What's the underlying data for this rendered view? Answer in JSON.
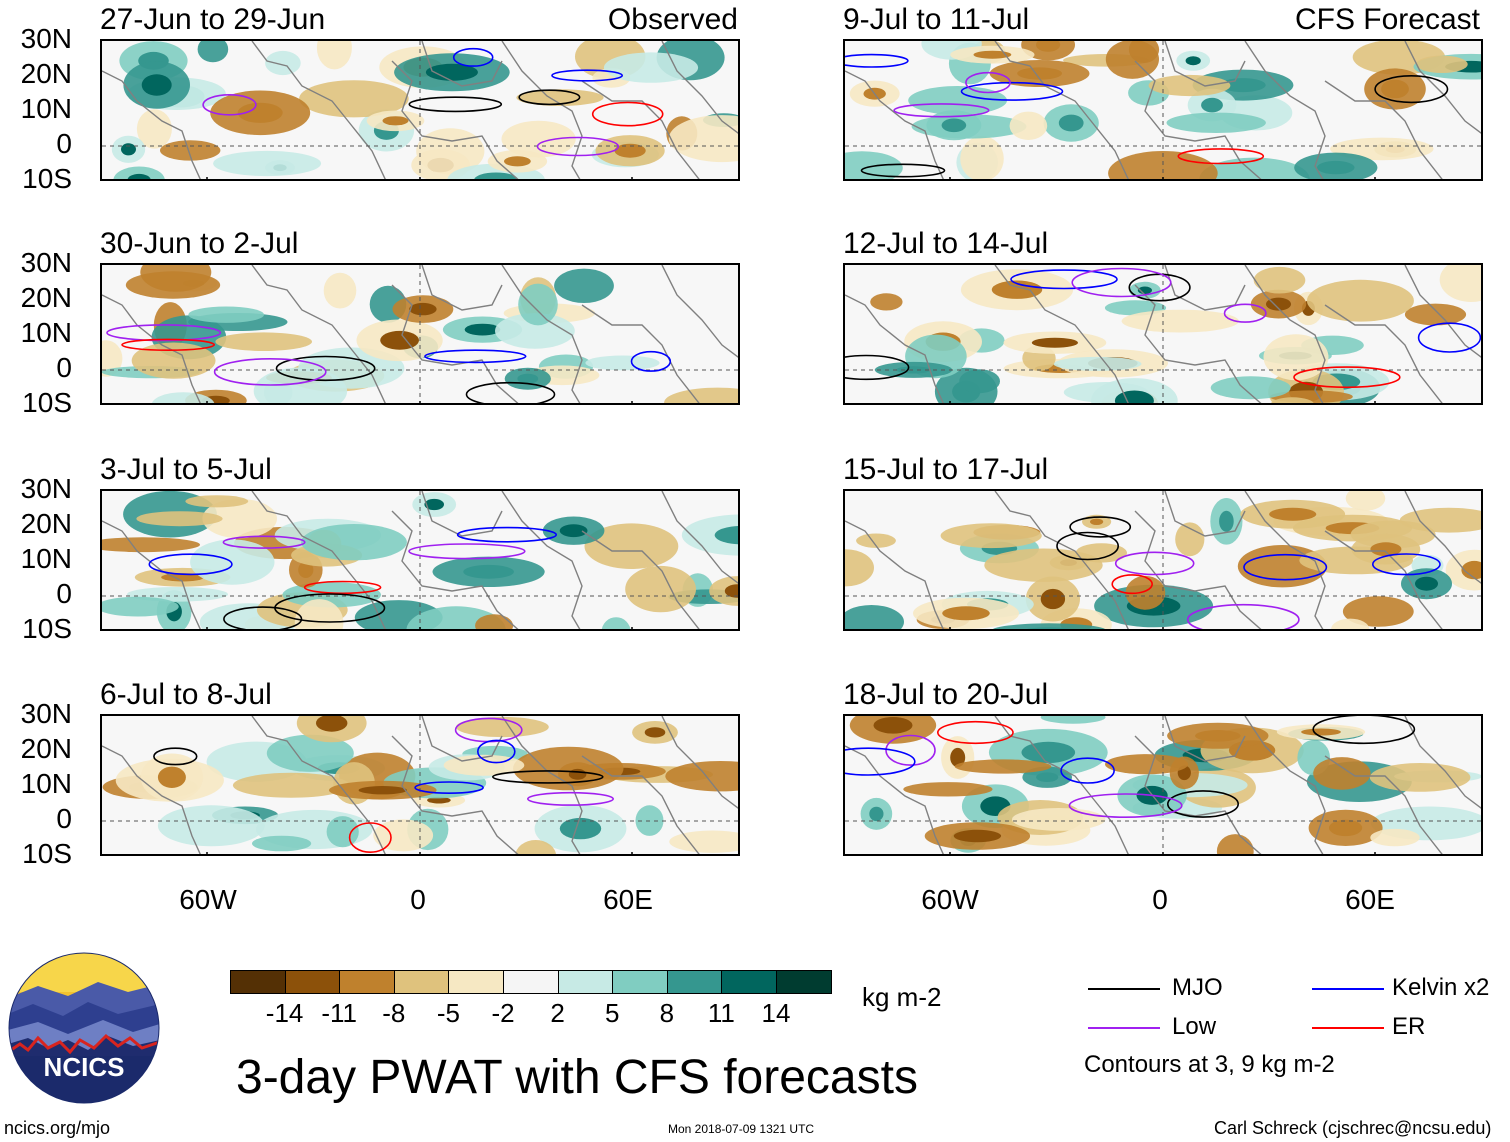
{
  "main_title": "3-day PWAT with CFS forecasts",
  "units": "kg m-2",
  "observed_label": "Observed",
  "forecast_label": "CFS Forecast",
  "lat_labels": [
    "30N",
    "20N",
    "10N",
    "0",
    "10S"
  ],
  "lon_labels": [
    "60W",
    "0",
    "60E"
  ],
  "panels": [
    {
      "title": "27-Jun to 29-Jun"
    },
    {
      "title": "9-Jul to 11-Jul"
    },
    {
      "title": "30-Jun to 2-Jul"
    },
    {
      "title": "12-Jul to 14-Jul"
    },
    {
      "title": "3-Jul to 5-Jul"
    },
    {
      "title": "15-Jul to 17-Jul"
    },
    {
      "title": "6-Jul to 8-Jul"
    },
    {
      "title": "18-Jul to 20-Jul"
    }
  ],
  "colorbar": {
    "colors": [
      "#543005",
      "#8c510a",
      "#bf812d",
      "#dfc27d",
      "#f6e8c3",
      "#f5f5f5",
      "#c7eae5",
      "#80cdc1",
      "#35978f",
      "#01665e",
      "#003c30"
    ],
    "labels": [
      "-14",
      "-11",
      "-8",
      "-5",
      "-2",
      "2",
      "5",
      "8",
      "11",
      "14"
    ]
  },
  "legend": {
    "items": [
      {
        "label": "MJO",
        "color": "#000000"
      },
      {
        "label": "Kelvin x2",
        "color": "#0000ff"
      },
      {
        "label": "Low",
        "color": "#a020f0"
      },
      {
        "label": "ER",
        "color": "#ff0000"
      }
    ],
    "note": "Contours at 3, 9 kg m-2"
  },
  "logo_text": "NCICS",
  "footer": {
    "left": "ncics.org/mjo",
    "center": "Mon 2018-07-09 1321 UTC",
    "right": "Carl Schreck (cjschrec@ncsu.edu)"
  }
}
